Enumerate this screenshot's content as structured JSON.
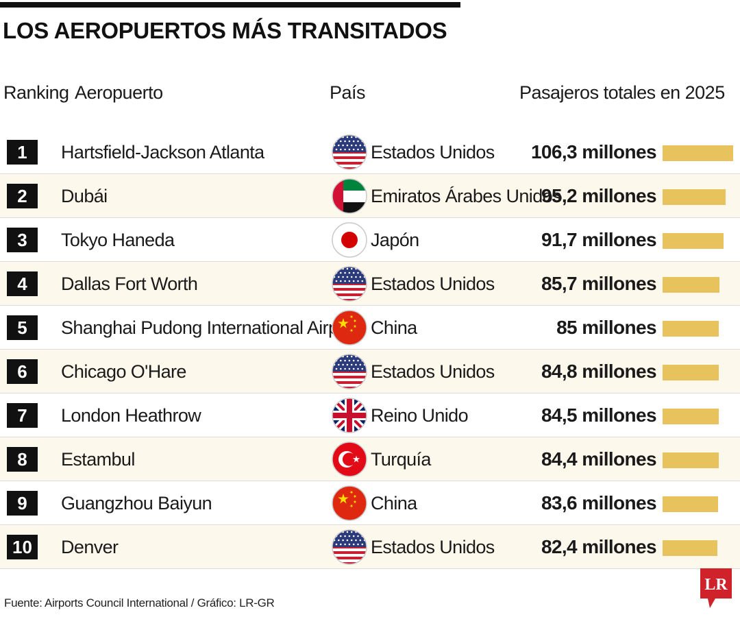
{
  "title": "LOS AEROPUERTOS MÁS TRANSITADOS",
  "headers": {
    "ranking": "Ranking",
    "airport": "Aeropuerto",
    "country": "País",
    "passengers": "Pasajeros totales en 2025"
  },
  "chart_data": {
    "type": "bar",
    "orientation": "horizontal",
    "unit": "millones",
    "xlim": [
      0,
      106.3
    ],
    "categories": [
      "Hartsfield-Jackson Atlanta",
      "Dubái",
      "Tokyo Haneda",
      "Dallas Fort Worth",
      "Shanghai Pudong International Airport",
      "Chicago O'Hare",
      "London Heathrow",
      "Estambul",
      "Guangzhou Baiyun",
      "Denver"
    ],
    "values": [
      106.3,
      95.2,
      91.7,
      85.7,
      85,
      84.8,
      84.5,
      84.4,
      83.6,
      82.4
    ],
    "bar_color": "#e8c35d"
  },
  "rows": [
    {
      "rank": "1",
      "airport": "Hartsfield-Jackson Atlanta",
      "flag": "usa",
      "country": "Estados Unidos",
      "label": "106,3 millones"
    },
    {
      "rank": "2",
      "airport": "Dubái",
      "flag": "uae",
      "country": "Emiratos Árabes Unidos",
      "label": "95,2 millones"
    },
    {
      "rank": "3",
      "airport": "Tokyo Haneda",
      "flag": "japan",
      "country": "Japón",
      "label": "91,7 millones"
    },
    {
      "rank": "4",
      "airport": "Dallas Fort Worth",
      "flag": "usa",
      "country": "Estados Unidos",
      "label": "85,7 millones"
    },
    {
      "rank": "5",
      "airport": "Shanghai Pudong International Airport",
      "flag": "china",
      "country": "China",
      "label": "85 millones"
    },
    {
      "rank": "6",
      "airport": "Chicago O'Hare",
      "flag": "usa",
      "country": "Estados Unidos",
      "label": "84,8 millones"
    },
    {
      "rank": "7",
      "airport": "London Heathrow",
      "flag": "uk",
      "country": "Reino Unido",
      "label": "84,5 millones"
    },
    {
      "rank": "8",
      "airport": "Estambul",
      "flag": "turkey",
      "country": "Turquía",
      "label": "84,4 millones"
    },
    {
      "rank": "9",
      "airport": "Guangzhou Baiyun",
      "flag": "china",
      "country": "China",
      "label": "83,6 millones"
    },
    {
      "rank": "10",
      "airport": "Denver",
      "flag": "usa",
      "country": "Estados Unidos",
      "label": "82,4 millones"
    }
  ],
  "source": "Fuente: Airports Council International / Gráfico: LR-GR",
  "logo": {
    "text": "LR",
    "color": "#d0222b"
  }
}
